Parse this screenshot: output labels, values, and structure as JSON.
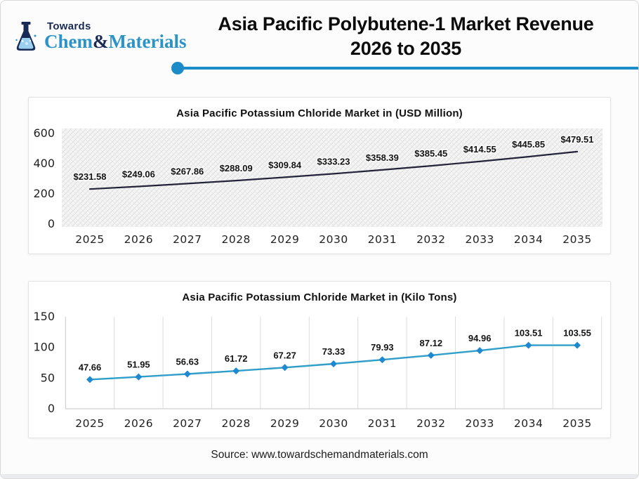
{
  "page": {
    "accent_color": "#1b8cc7"
  },
  "header": {
    "logo": {
      "towards": "Towards",
      "chem": "Chem",
      "amp": "&",
      "materials": "Materials"
    },
    "title_line1": "Asia Pacific Polybutene-1 Market Revenue",
    "title_line2": "2026 to 2035"
  },
  "chart_data": [
    {
      "type": "line",
      "title": "Asia Pacific Potassium Chloride Market in (USD Million)",
      "categories": [
        "2025",
        "2026",
        "2027",
        "2028",
        "2029",
        "2030",
        "2031",
        "2032",
        "2033",
        "2034",
        "2035"
      ],
      "values": [
        231.58,
        249.06,
        267.86,
        288.09,
        309.84,
        333.23,
        358.39,
        385.45,
        414.55,
        445.85,
        479.51
      ],
      "point_labels": [
        "$231.58",
        "$249.06",
        "$267.86",
        "$288.09",
        "$309.84",
        "$333.23",
        "$358.39",
        "$385.45",
        "$414.55",
        "$445.85",
        "$479.51"
      ],
      "xlabel": "",
      "ylabel": "",
      "ylim": [
        0,
        600
      ],
      "yticks": [
        0,
        200,
        400,
        600
      ],
      "grid": "none",
      "plot_background": "hatched-gray",
      "line_color": "#23233a",
      "marker": "none",
      "legend": "none"
    },
    {
      "type": "line",
      "title": "Asia Pacific Potassium Chloride Market in (Kilo Tons)",
      "categories": [
        "2025",
        "2026",
        "2027",
        "2028",
        "2029",
        "2030",
        "2031",
        "2032",
        "2033",
        "2034",
        "2035"
      ],
      "values": [
        47.66,
        51.95,
        56.63,
        61.72,
        67.27,
        73.33,
        79.93,
        87.12,
        94.96,
        103.51,
        103.55
      ],
      "point_labels": [
        "47.66",
        "51.95",
        "56.63",
        "61.72",
        "67.27",
        "73.33",
        "79.93",
        "87.12",
        "94.96",
        "103.51",
        "103.55"
      ],
      "xlabel": "",
      "ylabel": "",
      "ylim": [
        0,
        150
      ],
      "yticks": [
        0,
        50,
        100,
        150
      ],
      "grid": "vertical",
      "plot_background": "white",
      "line_color": "#2f9ec9",
      "marker": "diamond",
      "marker_color": "#1e88d0",
      "legend": "none"
    }
  ],
  "footer": {
    "source": "Source: www.towardschemandmaterials.com"
  }
}
